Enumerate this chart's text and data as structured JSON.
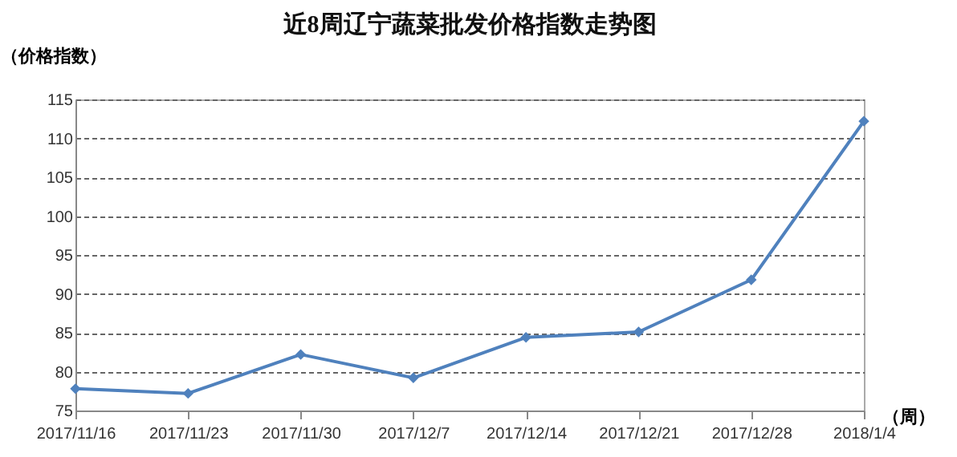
{
  "chart_data": {
    "type": "line",
    "title": "近8周辽宁蔬菜批发价格指数走势图",
    "ylabel": "（价格指数）",
    "xlabel": "（周）",
    "categories": [
      "2017/11/16",
      "2017/11/23",
      "2017/11/30",
      "2017/12/7",
      "2017/12/14",
      "2017/12/21",
      "2017/12/28",
      "2018/1/4"
    ],
    "series": [
      {
        "color": "#4f81bd",
        "values": [
          77.8,
          77.2,
          82.2,
          79.2,
          84.4,
          85.1,
          91.8,
          112.2
        ]
      }
    ],
    "ylim": [
      75,
      115
    ],
    "yticks": [
      75,
      80,
      85,
      90,
      95,
      100,
      105,
      110,
      115
    ],
    "grid": "y",
    "marker": "diamond",
    "line_style": "solid"
  }
}
